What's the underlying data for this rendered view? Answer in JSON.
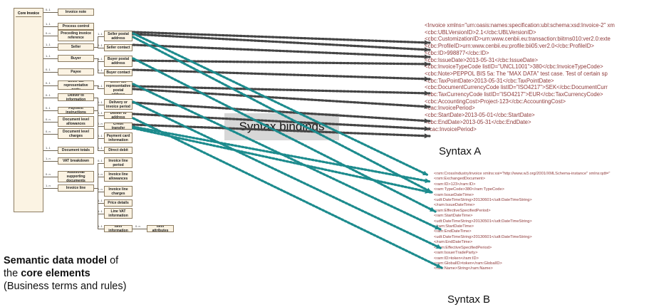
{
  "model": {
    "root_label": "Core Invoice",
    "level1": [
      {
        "label": "Invoice note",
        "card": "0..1"
      },
      {
        "label": "Process control",
        "card": "1..1"
      },
      {
        "label": "Preceding invoice reference",
        "card": "0..n"
      },
      {
        "label": "Seller",
        "card": "1..1"
      },
      {
        "label": "Buyer",
        "card": "1..1"
      },
      {
        "label": "Payee",
        "card": "0..1"
      },
      {
        "label": "Seller tax representative party",
        "card": "0..1"
      },
      {
        "label": "Deliver to information",
        "card": "0..1"
      },
      {
        "label": "Payment instructions",
        "card": "0..1"
      },
      {
        "label": "Document level allowances",
        "card": "0..n"
      },
      {
        "label": "Document level charges",
        "card": "0..n"
      },
      {
        "label": "Document totals",
        "card": "1..1"
      },
      {
        "label": "VAT breakdown",
        "card": "1..n"
      },
      {
        "label": "Additional supporting documents",
        "card": "0..n"
      },
      {
        "label": "Invoice line",
        "card": "1..n"
      }
    ],
    "level2": [
      {
        "label": "Seller postal address",
        "card": "1..1"
      },
      {
        "label": "Seller contact",
        "card": "0..1"
      },
      {
        "label": "Buyer postal address",
        "card": "1..1"
      },
      {
        "label": "Buyer contact",
        "card": "0..1"
      },
      {
        "label": "Seller tax representative postal address",
        "card": "1..1"
      },
      {
        "label": "Delivery or invoice period",
        "card": "0..1"
      },
      {
        "label": "Deliver to address",
        "card": "0..1"
      },
      {
        "label": "Credit transfer",
        "card": "0..n"
      },
      {
        "label": "Payment card information",
        "card": "0..1"
      },
      {
        "label": "Direct debit",
        "card": "0..1"
      },
      {
        "label": "Invoice line period",
        "card": "0..1"
      },
      {
        "label": "Invoice line allowances",
        "card": "0..n"
      },
      {
        "label": "Invoice line charges",
        "card": "0..n"
      },
      {
        "label": "Price details",
        "card": "1..1"
      },
      {
        "label": "Line VAT information",
        "card": "1..1"
      },
      {
        "label": "Item information",
        "card": "1..1"
      }
    ],
    "level3": {
      "label": "Item attributes",
      "card": "0..n"
    }
  },
  "syntax_a": {
    "caption": "Syntax A",
    "lines": [
      "<Invoice xmlns=\"urn:oasis:names:specification:ubl:schema:xsd:Invoice-2\" xm",
      "  <cbc:UBLVersionID>2.1</cbc:UBLVersionID>",
      "  <cbc:CustomizationID>urn:www.cenbii.eu:transaction:biitrns010:ver2.0:exte",
      "  <cbc:ProfileID>urn:www.cenbii.eu:profile:bii05:ver2.0</cbc:ProfileID>",
      "  <cbc:ID>998877</cbc:ID>",
      "  <cbc:IssueDate>2013-05-31</cbc:IssueDate>",
      "  <cbc:InvoiceTypeCode listID=\"UNCL1001\">380</cbc:InvoiceTypeCode>",
      "  <cbc:Note>PEPPOL BIS 5a: The \"MAX DATA\" test case. Test of certain sp",
      "  <cbc:TaxPointDate>2013-05-31</cbc:TaxPointDate>",
      "  <cbc:DocumentCurrencyCode listID=\"ISO4217\">SEK</cbc:DocumentCurr",
      "  <cbc:TaxCurrencyCode listID=\"ISO4217\">EUR</cbc:TaxCurrencyCode>",
      "  <cbc:AccountingCost>Project-123</cbc:AccountingCost>",
      "  <cac:InvoicePeriod>",
      "    <cbc:StartDate>2013-05-01</cbc:StartDate>",
      "    <cbc:EndDate>2013-05-31</cbc:EndDate>",
      "  </cac:InvoicePeriod>"
    ]
  },
  "syntax_b": {
    "caption": "Syntax B",
    "lines": [
      "<rsm:CrossIndustryInvoice xmlns:xsi=\"http://www.w3.org/2001/XMLSchema-instance\" xmlns:qdt=\"",
      "  <rsm:ExchangedDocument>",
      "    <ram:ID>123</ram:ID>",
      "  <ram:TypeCode>380</ram:TypeCode>",
      "  <ram:IssueDateTime>",
      "    <udt:DateTimeString>20130601</udt:DateTimeString>",
      "  </ram:IssueDateTime>",
      "  <ram:EffectiveSpecifiedPeriod>",
      "    <ram:StartDateTime>",
      "      <udt:DateTimeString>20130501</udt:DateTimeString>",
      "    </ram:StartDateTime>",
      "    <ram:EndDateTime>",
      "      <udt:DateTimeString>20130601</udt:DateTimeString>",
      "    </ram:EndDateTime>",
      "  </ram:EffectiveSpecifiedPeriod>",
      "  <ram:IssuerTradeParty>",
      "    <ram:ID>token</ram:ID>",
      "    <ram:GlobalID>token</ram:GlobalID>",
      "    <ram:Name>String</ram:Name>"
    ]
  },
  "bindings_label": "Syntax bindings",
  "caption": {
    "line1_bold": "Semantic data model",
    "line1_rest": " of",
    "line2_pre": "the ",
    "line2_bold": "core elements",
    "line3": "(Business terms and rules)"
  },
  "colors": {
    "arrow_dark": "#444444",
    "arrow_teal": "#1c8b8d",
    "box_fill": "#fbf3e3",
    "box_border": "#8d7d62"
  }
}
